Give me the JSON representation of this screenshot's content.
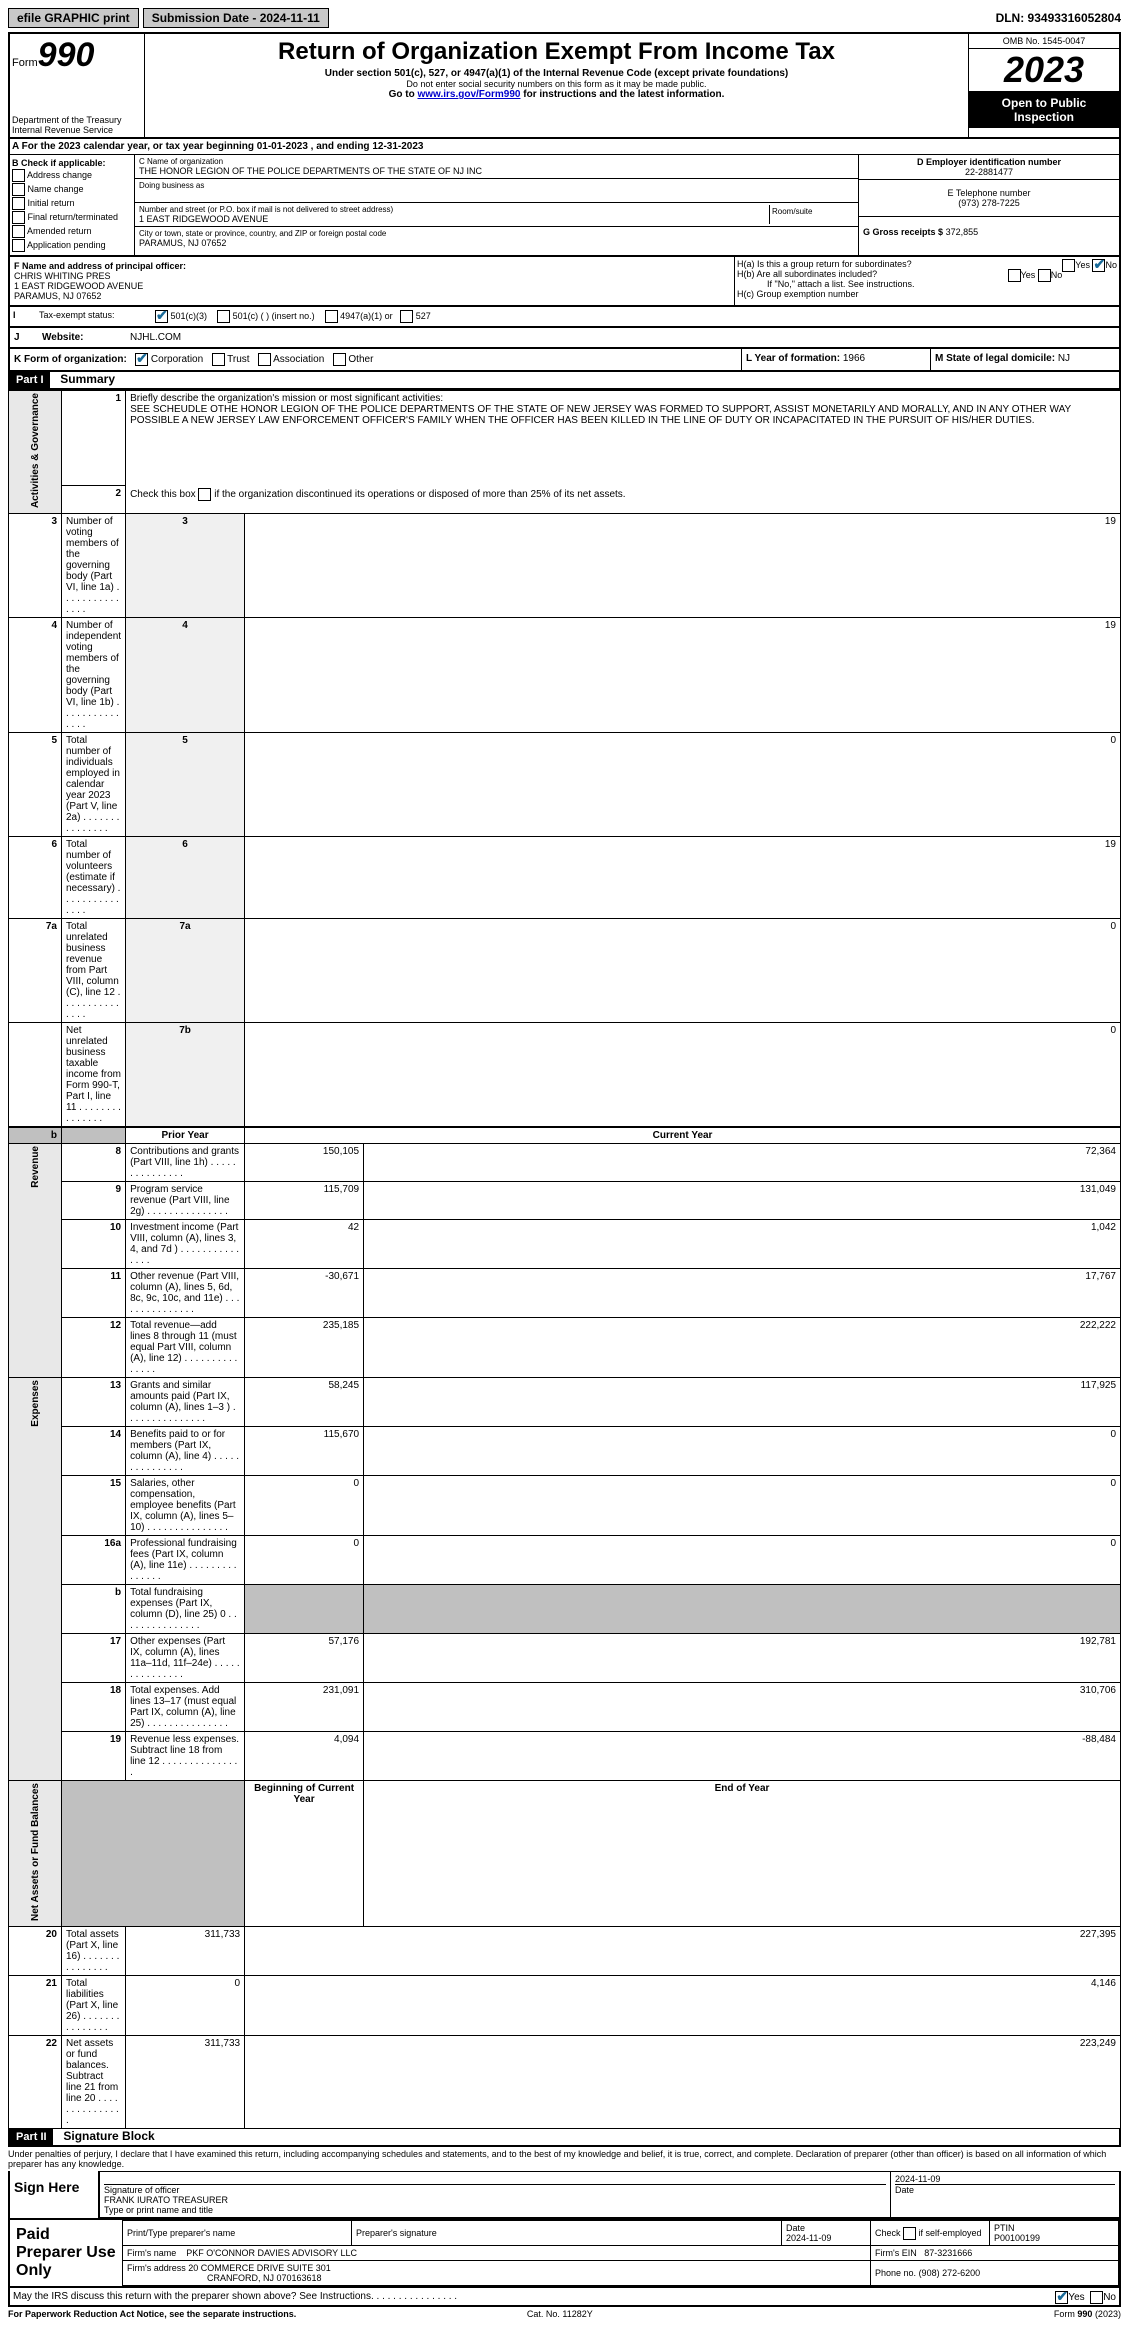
{
  "topbar": {
    "efile": "efile GRAPHIC print",
    "submission": "Submission Date - 2024-11-11",
    "dln": "DLN: 93493316052804"
  },
  "header": {
    "form_prefix": "Form",
    "form_num": "990",
    "title": "Return of Organization Exempt From Income Tax",
    "subtitle": "Under section 501(c), 527, or 4947(a)(1) of the Internal Revenue Code (except private foundations)",
    "warn": "Do not enter social security numbers on this form as it may be made public.",
    "goto": "Go to www.irs.gov/Form990 for instructions and the latest information.",
    "dept": "Department of the Treasury",
    "irs": "Internal Revenue Service",
    "omb": "OMB No. 1545-0047",
    "year": "2023",
    "open": "Open to Public Inspection"
  },
  "a": {
    "text": "A For the 2023 calendar year, or tax year beginning 01-01-2023   , and ending 12-31-2023"
  },
  "b": {
    "label": "B Check if applicable:",
    "opts": [
      "Address change",
      "Name change",
      "Initial return",
      "Final return/terminated",
      "Amended return",
      "Application pending"
    ]
  },
  "c": {
    "name_label": "C Name of organization",
    "name": "THE HONOR LEGION OF THE POLICE DEPARTMENTS OF THE STATE OF NJ INC",
    "dba_label": "Doing business as",
    "addr_label": "Number and street (or P.O. box if mail is not delivered to street address)",
    "room_label": "Room/suite",
    "addr": "1 EAST RIDGEWOOD AVENUE",
    "city_label": "City or town, state or province, country, and ZIP or foreign postal code",
    "city": "PARAMUS, NJ  07652"
  },
  "d": {
    "ein_label": "D Employer identification number",
    "ein": "22-2881477",
    "tel_label": "E Telephone number",
    "tel": "(973) 278-7225",
    "gross_label": "G Gross receipts $",
    "gross": "372,855"
  },
  "f": {
    "label": "F Name and address of principal officer:",
    "name": "CHRIS WHITING PRES",
    "addr": "1 EAST RIDGEWOOD AVENUE",
    "city": "PARAMUS, NJ  07652"
  },
  "h": {
    "a": "H(a)  Is this a group return for subordinates?",
    "b": "H(b)  Are all subordinates included?",
    "b2": "If \"No,\" attach a list. See instructions.",
    "c": "H(c)  Group exemption number"
  },
  "i": {
    "label": "Tax-exempt status:",
    "c3": "501(c)(3)",
    "c": "501(c) (  ) (insert no.)",
    "a1": "4947(a)(1) or",
    "s527": "527"
  },
  "j": {
    "label": "Website:",
    "val": "NJHL.COM"
  },
  "k": {
    "label": "K Form of organization:",
    "opts": [
      "Corporation",
      "Trust",
      "Association",
      "Other"
    ]
  },
  "l": {
    "label": "L Year of formation:",
    "val": "1966"
  },
  "m": {
    "label": "M State of legal domicile:",
    "val": "NJ"
  },
  "part1": {
    "header": "Part I",
    "title": "Summary",
    "q1": "Briefly describe the organization's mission or most significant activities:",
    "mission": "SEE SCHEUDLE OTHE HONOR LEGION OF THE POLICE DEPARTMENTS OF THE STATE OF NEW JERSEY WAS FORMED TO SUPPORT, ASSIST MONETARILY AND MORALLY, AND IN ANY OTHER WAY POSSIBLE A NEW JERSEY LAW ENFORCEMENT OFFICER'S FAMILY WHEN THE OFFICER HAS BEEN KILLED IN THE LINE OF DUTY OR INCAPACITATED IN THE PURSUIT OF HIS/HER DUTIES.",
    "q2": "Check this box      if the organization discontinued its operations or disposed of more than 25% of its net assets.",
    "side_gov": "Activities & Governance",
    "side_rev": "Revenue",
    "side_exp": "Expenses",
    "side_net": "Net Assets or Fund Balances",
    "rows_gov": [
      {
        "n": "3",
        "t": "Number of voting members of the governing body (Part VI, line 1a)",
        "l": "3",
        "v": "19"
      },
      {
        "n": "4",
        "t": "Number of independent voting members of the governing body (Part VI, line 1b)",
        "l": "4",
        "v": "19"
      },
      {
        "n": "5",
        "t": "Total number of individuals employed in calendar year 2023 (Part V, line 2a)",
        "l": "5",
        "v": "0"
      },
      {
        "n": "6",
        "t": "Total number of volunteers (estimate if necessary)",
        "l": "6",
        "v": "19"
      },
      {
        "n": "7a",
        "t": "Total unrelated business revenue from Part VIII, column (C), line 12",
        "l": "7a",
        "v": "0"
      },
      {
        "n": "",
        "t": "Net unrelated business taxable income from Form 990-T, Part I, line 11",
        "l": "7b",
        "v": "0"
      }
    ],
    "hdr_prior": "Prior Year",
    "hdr_curr": "Current Year",
    "hdr_beg": "Beginning of Current Year",
    "hdr_end": "End of Year",
    "rows_rev": [
      {
        "n": "8",
        "t": "Contributions and grants (Part VIII, line 1h)",
        "p": "150,105",
        "c": "72,364"
      },
      {
        "n": "9",
        "t": "Program service revenue (Part VIII, line 2g)",
        "p": "115,709",
        "c": "131,049"
      },
      {
        "n": "10",
        "t": "Investment income (Part VIII, column (A), lines 3, 4, and 7d )",
        "p": "42",
        "c": "1,042"
      },
      {
        "n": "11",
        "t": "Other revenue (Part VIII, column (A), lines 5, 6d, 8c, 9c, 10c, and 11e)",
        "p": "-30,671",
        "c": "17,767"
      },
      {
        "n": "12",
        "t": "Total revenue—add lines 8 through 11 (must equal Part VIII, column (A), line 12)",
        "p": "235,185",
        "c": "222,222"
      }
    ],
    "rows_exp": [
      {
        "n": "13",
        "t": "Grants and similar amounts paid (Part IX, column (A), lines 1–3 )",
        "p": "58,245",
        "c": "117,925"
      },
      {
        "n": "14",
        "t": "Benefits paid to or for members (Part IX, column (A), line 4)",
        "p": "115,670",
        "c": "0"
      },
      {
        "n": "15",
        "t": "Salaries, other compensation, employee benefits (Part IX, column (A), lines 5–10)",
        "p": "0",
        "c": "0"
      },
      {
        "n": "16a",
        "t": "Professional fundraising fees (Part IX, column (A), line 11e)",
        "p": "0",
        "c": "0"
      },
      {
        "n": "b",
        "t": "Total fundraising expenses (Part IX, column (D), line 25) 0",
        "p": "",
        "c": "",
        "shade": true
      },
      {
        "n": "17",
        "t": "Other expenses (Part IX, column (A), lines 11a–11d, 11f–24e)",
        "p": "57,176",
        "c": "192,781"
      },
      {
        "n": "18",
        "t": "Total expenses. Add lines 13–17 (must equal Part IX, column (A), line 25)",
        "p": "231,091",
        "c": "310,706"
      },
      {
        "n": "19",
        "t": "Revenue less expenses. Subtract line 18 from line 12",
        "p": "4,094",
        "c": "-88,484"
      }
    ],
    "rows_net": [
      {
        "n": "20",
        "t": "Total assets (Part X, line 16)",
        "p": "311,733",
        "c": "227,395"
      },
      {
        "n": "21",
        "t": "Total liabilities (Part X, line 26)",
        "p": "0",
        "c": "4,146"
      },
      {
        "n": "22",
        "t": "Net assets or fund balances. Subtract line 21 from line 20",
        "p": "311,733",
        "c": "223,249"
      }
    ]
  },
  "part2": {
    "header": "Part II",
    "title": "Signature Block",
    "perjury": "Under penalties of perjury, I declare that I have examined this return, including accompanying schedules and statements, and to the best of my knowledge and belief, it is true, correct, and complete. Declaration of preparer (other than officer) is based on all information of which preparer has any knowledge.",
    "sign_here": "Sign Here",
    "sig_officer": "Signature of officer",
    "sig_name": "FRANK IURATO TREASURER",
    "sig_type": "Type or print name and title",
    "date_label": "Date",
    "date": "2024-11-09"
  },
  "paid": {
    "title": "Paid Preparer Use Only",
    "prep_name_label": "Print/Type preparer's name",
    "prep_sig_label": "Preparer's signature",
    "date_label": "Date",
    "date": "2024-11-09",
    "check_label": "Check        if self-employed",
    "ptin_label": "PTIN",
    "ptin": "P00100199",
    "firm_name_label": "Firm's name",
    "firm_name": "PKF O'CONNOR DAVIES ADVISORY LLC",
    "firm_ein_label": "Firm's EIN",
    "firm_ein": "87-3231666",
    "firm_addr_label": "Firm's address",
    "firm_addr": "20 COMMERCE DRIVE SUITE 301",
    "firm_city": "CRANFORD, NJ  070163618",
    "phone_label": "Phone no.",
    "phone": "(908) 272-6200"
  },
  "footer": {
    "discuss": "May the IRS discuss this return with the preparer shown above? See Instructions.",
    "paperwork": "For Paperwork Reduction Act Notice, see the separate instructions.",
    "cat": "Cat. No. 11282Y",
    "form": "Form 990 (2023)"
  }
}
